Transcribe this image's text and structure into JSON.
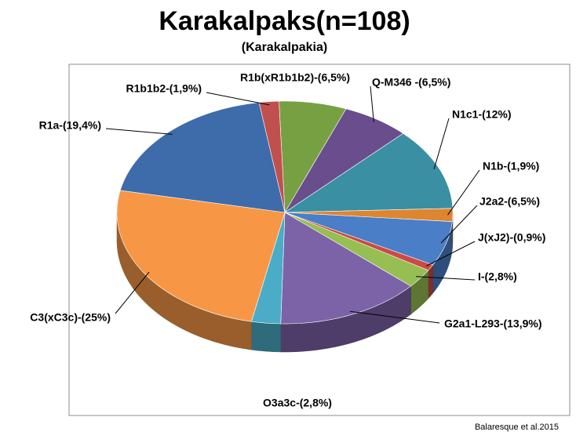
{
  "chart_data": {
    "type": "pie",
    "title": "Karakalpaks(n=108)",
    "subtitle": "(Karakalpakia)",
    "source": "Balaresque et al.2015",
    "slices": [
      {
        "label": "R1b(xR1b1b2)-(6,5%)",
        "value": 6.5,
        "color": "#77A043"
      },
      {
        "label": "Q-M346 -(6,5%)",
        "value": 6.5,
        "color": "#6A4D8C"
      },
      {
        "label": "N1c1-(12%)",
        "value": 12,
        "color": "#3A8FA2"
      },
      {
        "label": "N1b-(1,9%)",
        "value": 1.9,
        "color": "#DE8530"
      },
      {
        "label": "J2a2-(6,5%)",
        "value": 6.5,
        "color": "#4A7EC6"
      },
      {
        "label": "J(xJ2)-(0,9%)",
        "value": 0.9,
        "color": "#CC4A46"
      },
      {
        "label": "I-(2,8%)",
        "value": 2.8,
        "color": "#96BE52"
      },
      {
        "label": "G2a1-L293-(13,9%)",
        "value": 13.9,
        "color": "#7C63A8"
      },
      {
        "label": "O3a3c-(2,8%)",
        "value": 2.8,
        "color": "#4AACC6"
      },
      {
        "label": "C3(xC3c)-(25%)",
        "value": 25,
        "color": "#F79746"
      },
      {
        "label": "R1a-(19,4%)",
        "value": 19.4,
        "color": "#3E6BAA"
      },
      {
        "label": "R1b1b2-(1,9%)",
        "value": 1.9,
        "color": "#C0504D"
      }
    ]
  }
}
